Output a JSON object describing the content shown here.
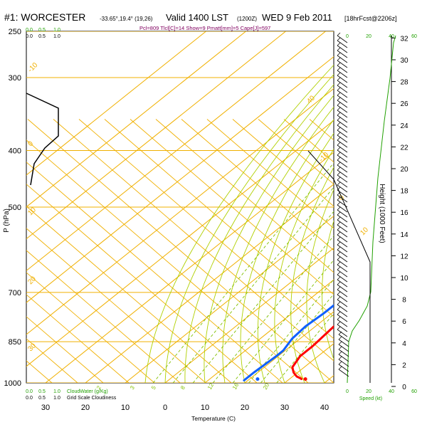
{
  "header": {
    "station": "#1: WORCESTER",
    "coords": "-33.65°,19.4° (19,26)",
    "valid": "Valid 1400 LST",
    "utc": "(1200Z)",
    "date": "WED 9 Feb 2011",
    "forecast": "[18hrFcst@2206z]",
    "indices": "Pcl=809 Tlcl[C]=14 Show=9 Pmatt[mm]=5 Cape[J]=597"
  },
  "colors": {
    "isotherm": "#f0b000",
    "mixing": "#80c000",
    "moist": "#b0d000",
    "temperature": "#ff0000",
    "dewpoint": "#1060ff",
    "parcel": "#800060",
    "cloud": "#000000",
    "green_label": "#20a000",
    "title_parcel": "#800060"
  },
  "chart_data": {
    "type": "line",
    "title": "#1: WORCESTER",
    "xlabel": "Temperature (C)",
    "ylabel": "P (hPa)",
    "y2label": "Height (1000 Feet)",
    "xlim": [
      -4,
      40
    ],
    "ylim": [
      1000,
      250
    ],
    "x_ticks": [
      0,
      10,
      20,
      30,
      40
    ],
    "y_ticks": [
      {
        "p": 250,
        "label": "250"
      },
      {
        "p": 300,
        "label": "300"
      },
      {
        "p": 400,
        "label": "400"
      },
      {
        "p": 500,
        "label": "500"
      },
      {
        "p": 700,
        "label": "700"
      },
      {
        "p": 850,
        "label": "850"
      },
      {
        "p": 1000,
        "label": "1000"
      }
    ],
    "height_ticks": [
      "0",
      "2",
      "4",
      "6",
      "8",
      "10",
      "12",
      "14",
      "16",
      "18",
      "20",
      "22",
      "24",
      "26",
      "28",
      "30",
      "32"
    ],
    "cloud_axis": {
      "top_green": [
        "0.0",
        "0.5",
        "1.0"
      ],
      "top_black": [
        "0.0",
        "0.5",
        "1.0"
      ],
      "bottom_green": [
        "0.0",
        "0.5",
        "1.0"
      ],
      "bottom_black": [
        "0.0",
        "0.5",
        "1.0"
      ],
      "cloudwater_label": "CloudWater (g/Kg)",
      "gridscale_label": "Grid Scale Cloudiness",
      "left_ticks": [
        "30",
        "20",
        "10"
      ]
    },
    "speed_axis": {
      "ticks": [
        "0",
        "20",
        "40",
        "60"
      ],
      "label": "Speed (kt)"
    },
    "isotherm_labels": [
      "-10",
      "0",
      "10",
      "20",
      "30",
      "40",
      "-10",
      "0",
      "10",
      "20",
      "30"
    ],
    "mixing_labels": [
      "2",
      "3",
      "5",
      "8",
      "12",
      "16",
      "20"
    ],
    "series": [
      {
        "name": "temperature",
        "points": [
          [
            33,
            985
          ],
          [
            32.5,
            982
          ],
          [
            31,
            975
          ],
          [
            29,
            960
          ],
          [
            27,
            940
          ],
          [
            25.5,
            900
          ],
          [
            25.5,
            880
          ],
          [
            25.5,
            865
          ],
          [
            24.5,
            790
          ],
          [
            21.5,
            720
          ],
          [
            20.5,
            690
          ],
          [
            19,
            640
          ],
          [
            17.5,
            590
          ],
          [
            16,
            540
          ],
          [
            15,
            500
          ],
          [
            13.5,
            450
          ],
          [
            12,
            400
          ],
          [
            10.5,
            350
          ],
          [
            8.5,
            300
          ],
          [
            6.5,
            265
          ],
          [
            5.5,
            250
          ]
        ]
      },
      {
        "name": "dewpoint",
        "points": [
          [
            19,
            990
          ],
          [
            19,
            960
          ],
          [
            19.5,
            900
          ],
          [
            19.5,
            880
          ],
          [
            18,
            840
          ],
          [
            17.5,
            800
          ],
          [
            18,
            760
          ],
          [
            18,
            700
          ],
          [
            16.5,
            650
          ],
          [
            15,
            600
          ],
          [
            13.5,
            550
          ],
          [
            12,
            500
          ],
          [
            11.5,
            450
          ],
          [
            11,
            400
          ],
          [
            10,
            350
          ],
          [
            8,
            325
          ],
          [
            5,
            300
          ],
          [
            2,
            280
          ],
          [
            0.5,
            265
          ],
          [
            -1.5,
            250
          ]
        ]
      },
      {
        "name": "parcel",
        "points": [
          [
            21.5,
            700
          ],
          [
            21,
            650
          ],
          [
            20.5,
            600
          ],
          [
            19.5,
            550
          ],
          [
            19,
            500
          ],
          [
            17.5,
            450
          ],
          [
            16,
            400
          ],
          [
            14,
            350
          ],
          [
            11.5,
            300
          ],
          [
            9.5,
            275
          ],
          [
            7.5,
            260
          ]
        ]
      },
      {
        "name": "surface_temp",
        "points": [
          [
            34,
            985
          ]
        ]
      },
      {
        "name": "surface_dew",
        "points": [
          [
            22,
            985
          ]
        ]
      }
    ]
  }
}
